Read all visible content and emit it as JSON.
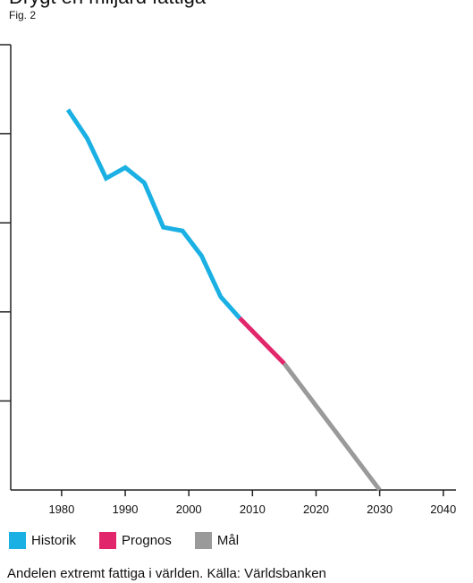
{
  "top_cut_text": "Drygt en miljard fattiga",
  "fig_label": "Fig. 2",
  "caption": "Andelen extremt fattiga i världen. Källa: Världsbanken",
  "colors": {
    "historik": "#1ab0e3",
    "prognos": "#e2266b",
    "mal": "#9a9a9a",
    "axis": "#222222"
  },
  "legend": [
    {
      "label": "Historik",
      "color": "#1ab0e3"
    },
    {
      "label": "Prognos",
      "color": "#e2266b"
    },
    {
      "label": "Mål",
      "color": "#9a9a9a"
    }
  ],
  "chart_data": {
    "type": "line",
    "title": "",
    "xlabel": "",
    "ylabel": "",
    "xlim": [
      1972,
      2042
    ],
    "ylim": [
      0,
      50
    ],
    "x_ticks": [
      1980,
      1990,
      2000,
      2010,
      2020,
      2030,
      2040
    ],
    "x_tick_labels": [
      "1980",
      "1990",
      "2000",
      "2010",
      "2020",
      "2030",
      "2040"
    ],
    "y_ticks": [
      10,
      20,
      30,
      40,
      50
    ],
    "y_tick_labels": [
      "",
      "",
      "",
      "",
      ""
    ],
    "series": [
      {
        "name": "Historik",
        "color": "#1ab0e3",
        "x": [
          1981,
          1984,
          1987,
          1990,
          1993,
          1996,
          1999,
          2002,
          2005,
          2008
        ],
        "y": [
          42.7,
          39.5,
          35.0,
          36.2,
          34.5,
          29.5,
          29.1,
          26.3,
          21.7,
          19.3
        ]
      },
      {
        "name": "Prognos",
        "color": "#e2266b",
        "x": [
          2008,
          2015
        ],
        "y": [
          19.3,
          14.2
        ]
      },
      {
        "name": "Mål",
        "color": "#9a9a9a",
        "x": [
          2015,
          2030
        ],
        "y": [
          14.2,
          0
        ]
      }
    ]
  }
}
